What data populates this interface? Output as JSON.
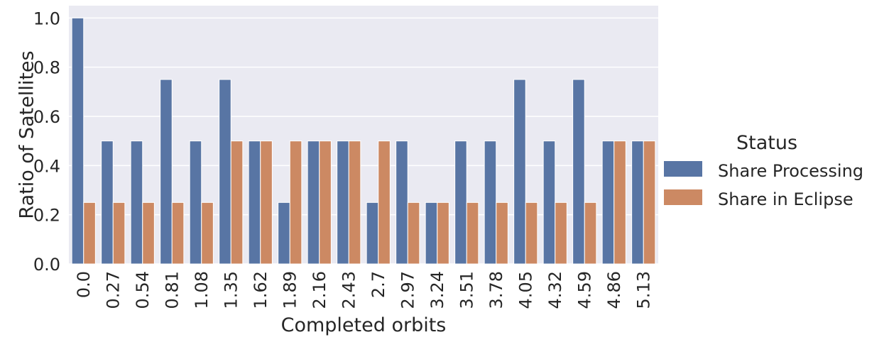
{
  "chart_data": {
    "type": "bar",
    "xlabel": "Completed orbits",
    "ylabel": "Ratio of Satellites",
    "ylim": [
      0,
      1.05
    ],
    "yticks": [
      "0.0",
      "0.2",
      "0.4",
      "0.6",
      "0.8",
      "1.0"
    ],
    "grid": true,
    "legend": {
      "title": "Status",
      "placement": "right"
    },
    "categories": [
      "0.0",
      "0.27",
      "0.54",
      "0.81",
      "1.08",
      "1.35",
      "1.62",
      "1.89",
      "2.16",
      "2.43",
      "2.7",
      "2.97",
      "3.24",
      "3.51",
      "3.78",
      "4.05",
      "4.32",
      "4.59",
      "4.86",
      "5.13"
    ],
    "series": [
      {
        "name": "Share Processing",
        "color": "#5875A4",
        "values": [
          1.0,
          0.5,
          0.5,
          0.75,
          0.5,
          0.75,
          0.5,
          0.25,
          0.5,
          0.5,
          0.25,
          0.5,
          0.25,
          0.5,
          0.5,
          0.75,
          0.5,
          0.75,
          0.5,
          0.5
        ]
      },
      {
        "name": "Share in Eclipse",
        "color": "#CC8963",
        "values": [
          0.25,
          0.25,
          0.25,
          0.25,
          0.25,
          0.5,
          0.5,
          0.5,
          0.5,
          0.5,
          0.5,
          0.25,
          0.25,
          0.25,
          0.25,
          0.25,
          0.25,
          0.25,
          0.5,
          0.5
        ]
      }
    ],
    "background": "#EAEAF2",
    "gridcolor": "#FFFFFF"
  }
}
